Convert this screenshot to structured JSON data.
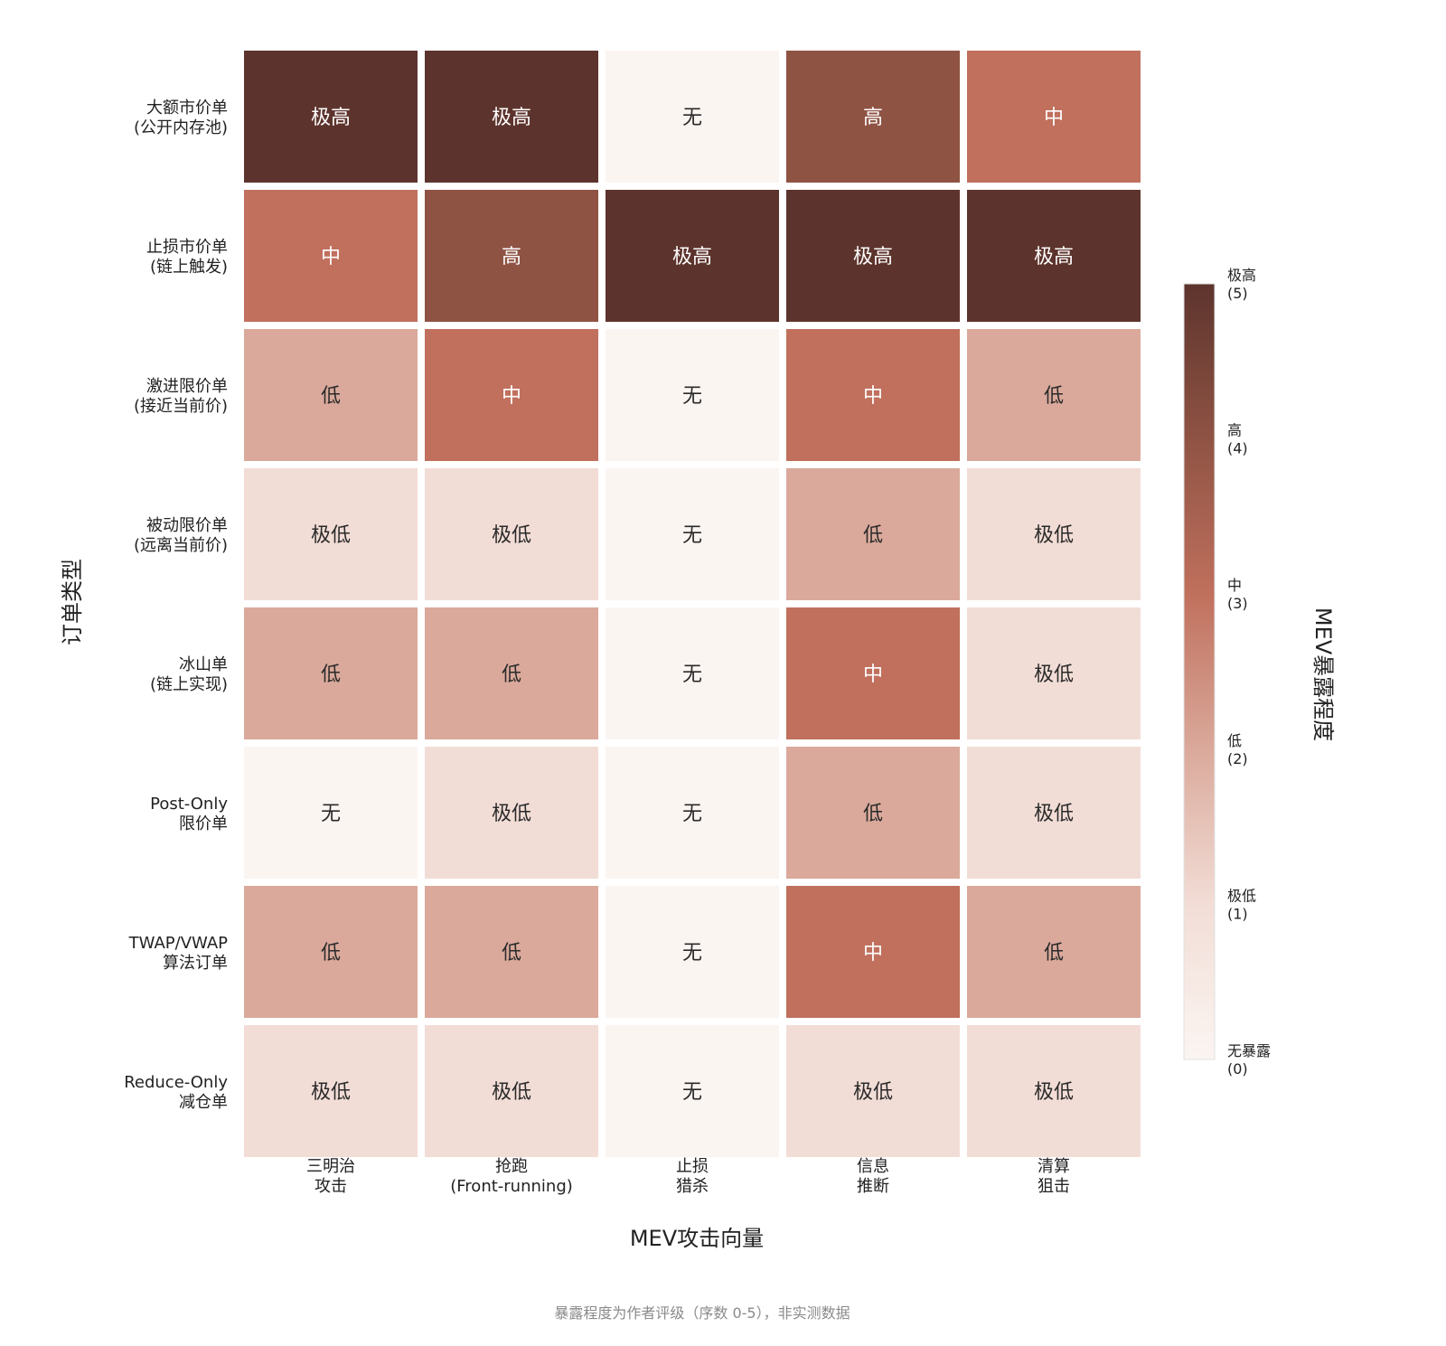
{
  "chart_data": {
    "type": "heatmap",
    "xlabel": "MEV攻击向量",
    "ylabel": "订单类型",
    "x_categories": [
      [
        "三明治",
        "攻击"
      ],
      [
        "抢跑",
        "(Front-running)"
      ],
      [
        "止损",
        "猎杀"
      ],
      [
        "信息",
        "推断"
      ],
      [
        "清算",
        "狙击"
      ]
    ],
    "y_categories": [
      [
        "大额市价单",
        "(公开内存池)"
      ],
      [
        "止损市价单",
        "(链上触发)"
      ],
      [
        "激进限价单",
        "(接近当前价)"
      ],
      [
        "被动限价单",
        "(远离当前价)"
      ],
      [
        "冰山单",
        "(链上实现)"
      ],
      [
        "Post-Only",
        "限价单"
      ],
      [
        "TWAP/VWAP",
        "算法订单"
      ],
      [
        "Reduce-Only",
        "减仓单"
      ]
    ],
    "values": [
      [
        5,
        5,
        0,
        4,
        3
      ],
      [
        3,
        4,
        5,
        5,
        5
      ],
      [
        2,
        3,
        0,
        3,
        2
      ],
      [
        1,
        1,
        0,
        2,
        1
      ],
      [
        2,
        2,
        0,
        3,
        1
      ],
      [
        0,
        1,
        0,
        2,
        1
      ],
      [
        2,
        2,
        0,
        3,
        2
      ],
      [
        1,
        1,
        0,
        1,
        1
      ]
    ],
    "level_labels": [
      "无",
      "极低",
      "低",
      "中",
      "高",
      "极高"
    ],
    "colorbar": {
      "title": "MEV暴露程度",
      "range": [
        0,
        5
      ],
      "ticks": [
        {
          "value": 0,
          "label": [
            "无暴露",
            "(0)"
          ]
        },
        {
          "value": 1,
          "label": [
            "极低",
            "(1)"
          ]
        },
        {
          "value": 2,
          "label": [
            "低",
            "(2)"
          ]
        },
        {
          "value": 3,
          "label": [
            "中",
            "(3)"
          ]
        },
        {
          "value": 4,
          "label": [
            "高",
            "(4)"
          ]
        },
        {
          "value": 5,
          "label": [
            "极高",
            "(5)"
          ]
        }
      ]
    },
    "colors": [
      "#fbf5f2",
      "#f2ddd6",
      "#daa99b",
      "#c0705d",
      "#8f5344",
      "#5d342d"
    ],
    "note": "暴露程度为作者评级（序数 0-5），非实测数据"
  }
}
